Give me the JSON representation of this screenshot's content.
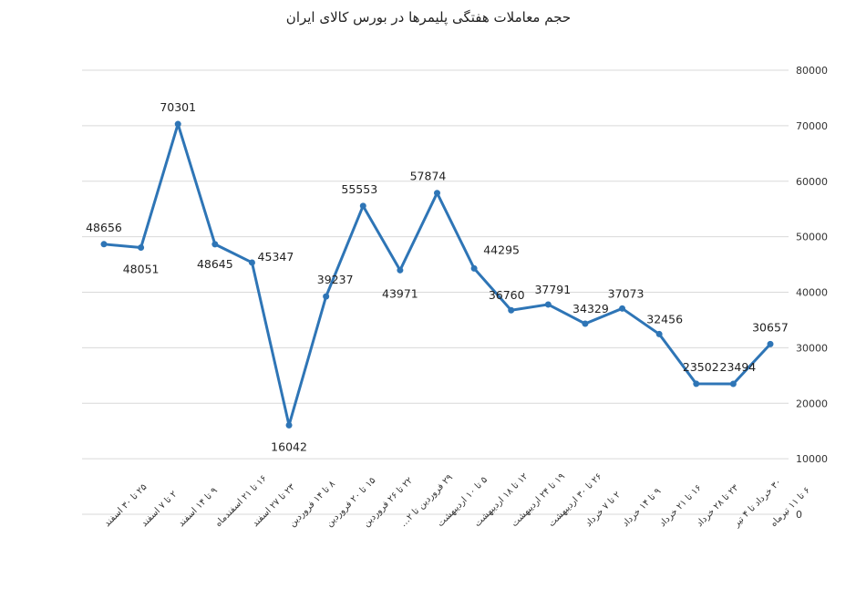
{
  "chart_data": {
    "type": "line",
    "title": "حجم معاملات هفتگی پلیمرها در بورس کالای ایران",
    "categories": [
      "۲۵ تا ۳۰ اسفند",
      "۲ تا ۷ اسفند",
      "۹ تا ۱۴ اسفند",
      "۱۶ تا ۲۱ اسفندماه",
      "۲۳ تا ۲۷ اسفند",
      "۸ تا ۱۴ فروردین",
      "۱۵ تا ۲۰ فروردین",
      "۲۲ تا ۲۶ فروردین",
      "۲۹ فروردین تا ۲…",
      "۵ تا ۱۰ اردیبهشت",
      "۱۲ تا ۱۸ اردیبهشت",
      "۱۹ تا ۲۴ اردیبهشت",
      "۲۶ تا ۳۰ اردیبهشت",
      "۲ تا ۷ خرداد",
      "۹ تا ۱۴ خرداد",
      "۱۶ تا ۲۱ خرداد",
      "۲۳ تا ۲۸ خرداد",
      "۳۰ خرداد تا ۴ تیر",
      "۶ تا ۱۱ تیرماه"
    ],
    "series": [
      {
        "color": "#2e75b6",
        "values": [
          48656,
          48051,
          70301,
          48645,
          45347,
          16042,
          39237,
          55553,
          43971,
          57874,
          44295,
          36760,
          37791,
          34329,
          37073,
          32456,
          23502,
          23494,
          30657
        ]
      }
    ],
    "ylim": [
      0,
      80000
    ],
    "yticks": [
      0,
      10000,
      20000,
      30000,
      40000,
      50000,
      60000,
      70000,
      80000
    ],
    "grid": true,
    "y_axis_side": "right"
  }
}
